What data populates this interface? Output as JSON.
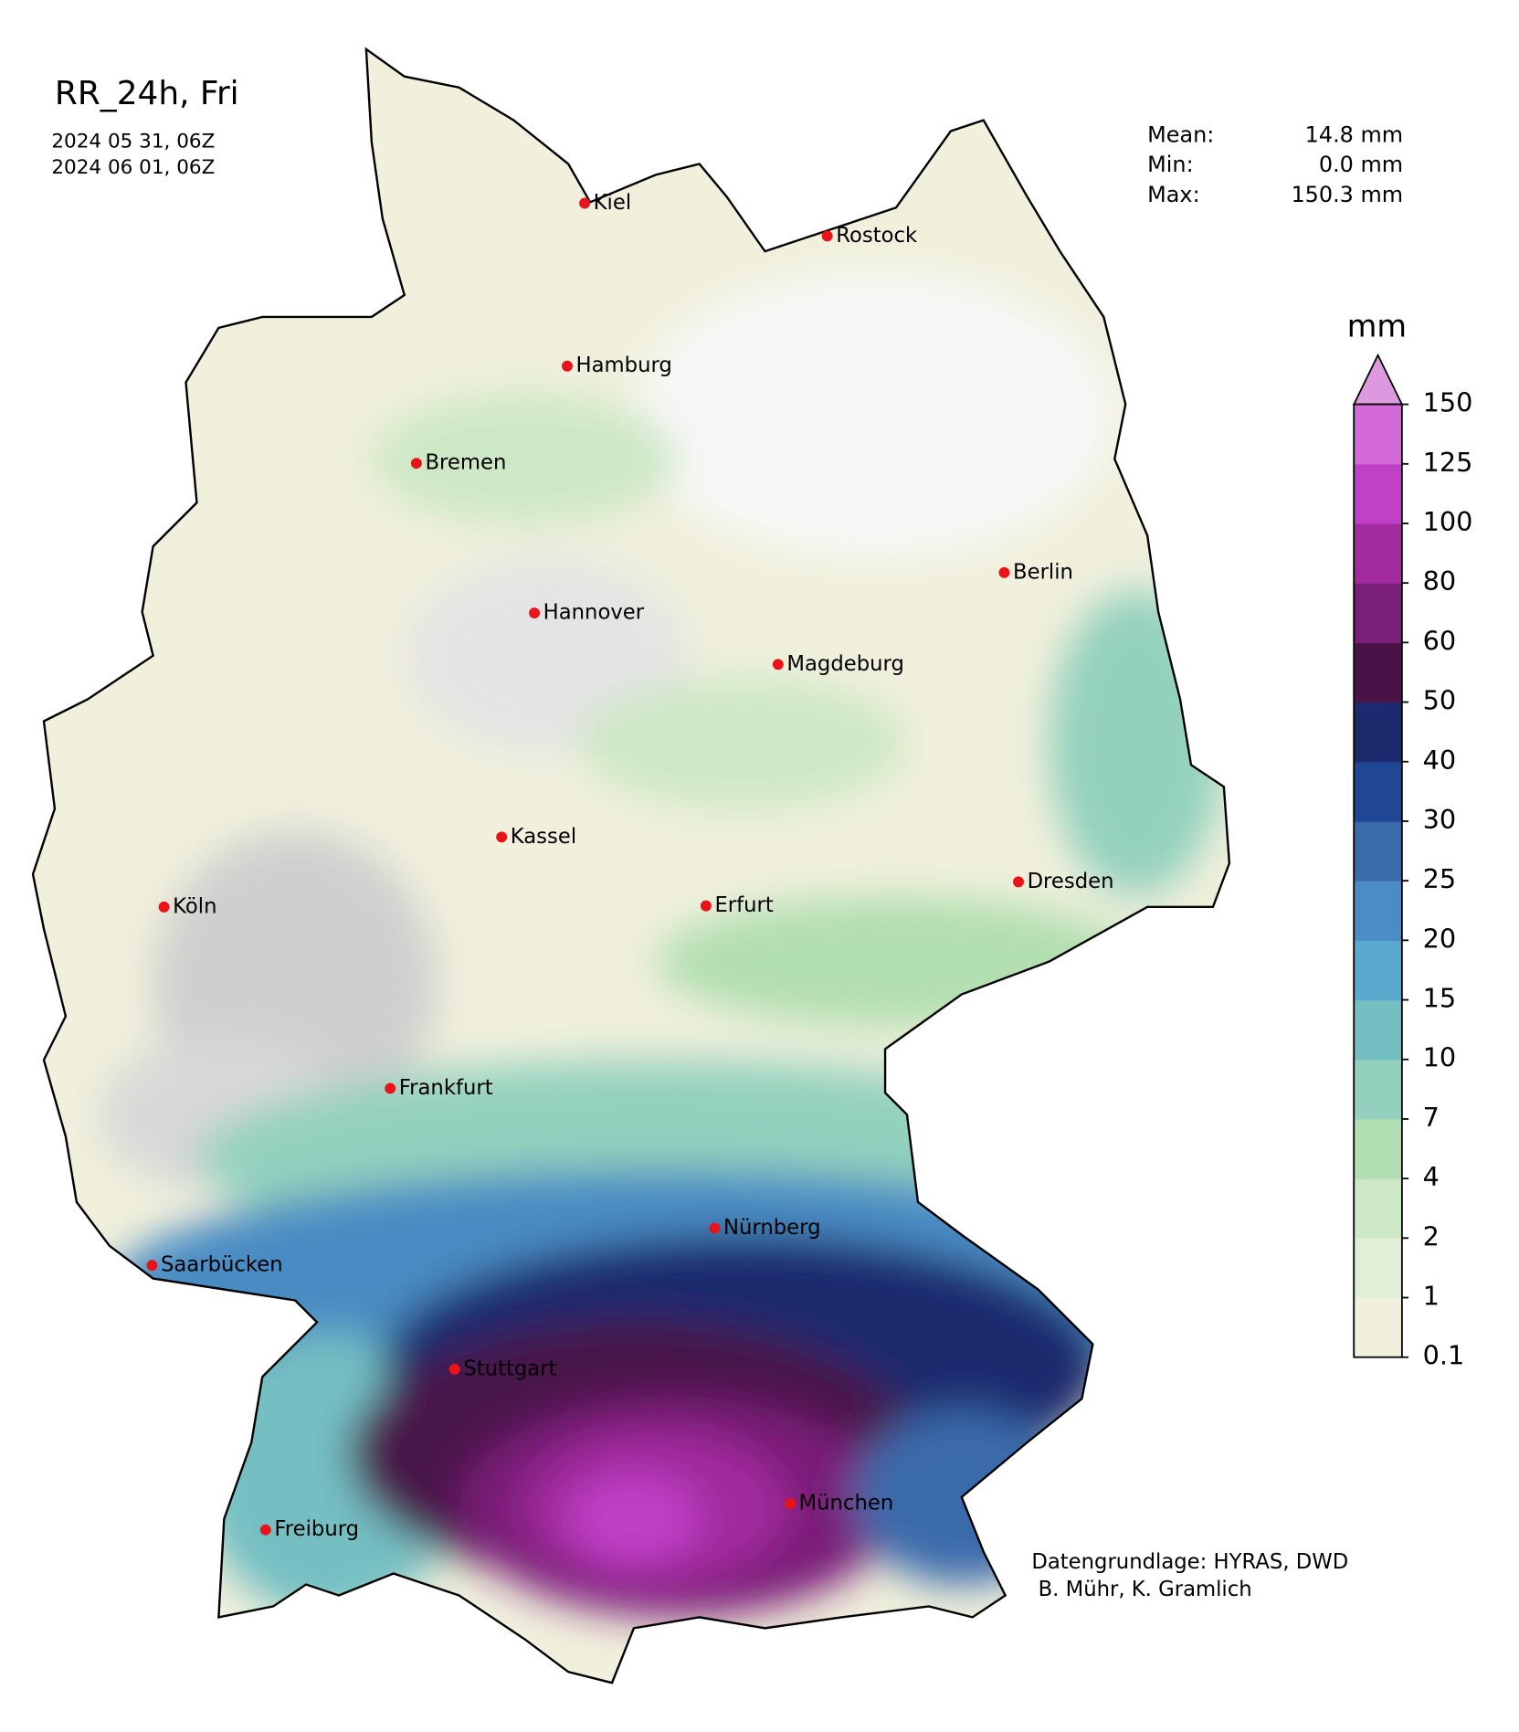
{
  "header": {
    "title": "RR_24h, Fri",
    "dates": [
      "2024 05 31, 06Z",
      "2024 06 01, 06Z"
    ]
  },
  "stats": [
    {
      "label": "Mean:",
      "value": "14.8 mm"
    },
    {
      "label": "Min:",
      "value": "0.0 mm"
    },
    {
      "label": "Max:",
      "value": "150.3 mm"
    }
  ],
  "cities": [
    "Kiel",
    "Rostock",
    "Hamburg",
    "Bremen",
    "Berlin",
    "Hannover",
    "Magdeburg",
    "Kassel",
    "Köln",
    "Erfurt",
    "Dresden",
    "Frankfurt",
    "Saarbücken",
    "Nürnberg",
    "Stuttgart",
    "Freiburg",
    "München"
  ],
  "colorbar": {
    "unit": "mm",
    "ticks": [
      0.1,
      1,
      2,
      4,
      7,
      10,
      15,
      20,
      25,
      30,
      40,
      50,
      60,
      80,
      100,
      125,
      150
    ],
    "colors": [
      "#f0f0dc",
      "#e1efd8",
      "#cde8c5",
      "#b2dfb1",
      "#93d1be",
      "#74bfc2",
      "#5aaad0",
      "#4a8cc3",
      "#3a6bab",
      "#1f4795",
      "#1c2a6e",
      "#4a1348",
      "#7a1f78",
      "#a22c9e",
      "#c040c8",
      "#d36ad8"
    ],
    "extend_color": "#dd99e0"
  },
  "credits": [
    "Datengrundlage: HYRAS, DWD",
    " B. Mühr, K. Gramlich"
  ]
}
